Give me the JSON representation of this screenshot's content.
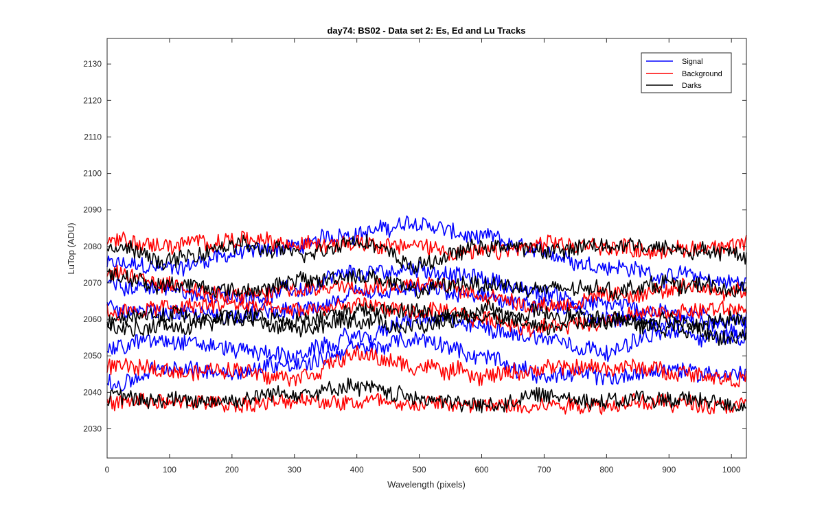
{
  "chart_data": {
    "type": "line",
    "title": "day74: BS02 - Data set 2: Es, Ed and Lu Tracks",
    "xlabel": "Wavelength (pixels)",
    "ylabel": "LuTop (ADU)",
    "xlim": [
      0,
      1024
    ],
    "ylim": [
      2022,
      2137
    ],
    "xticks": [
      0,
      100,
      200,
      300,
      400,
      500,
      600,
      700,
      800,
      900,
      1000
    ],
    "yticks": [
      2030,
      2040,
      2050,
      2060,
      2070,
      2080,
      2090,
      2100,
      2110,
      2120,
      2130
    ],
    "legend_position": "top-right",
    "colors": {
      "Signal": "#0000ff",
      "Background": "#ff0000",
      "Darks": "#000000"
    },
    "series": [
      {
        "name": "Signal",
        "group": "Signal",
        "x": [
          0,
          100,
          200,
          300,
          400,
          500,
          600,
          700,
          800,
          900,
          1024
        ],
        "values": [
          2075,
          2074,
          2078,
          2080,
          2084,
          2086,
          2082,
          2078,
          2075,
          2072,
          2070
        ]
      },
      {
        "name": "Signal",
        "group": "Signal",
        "x": [
          0,
          100,
          200,
          300,
          400,
          500,
          600,
          700,
          800,
          900,
          1024
        ],
        "values": [
          2070,
          2068,
          2066,
          2068,
          2072,
          2074,
          2071,
          2067,
          2064,
          2062,
          2060
        ]
      },
      {
        "name": "Signal",
        "group": "Signal",
        "x": [
          0,
          100,
          200,
          300,
          400,
          500,
          600,
          700,
          800,
          900,
          1024
        ],
        "values": [
          2063,
          2062,
          2061,
          2062,
          2066,
          2068,
          2066,
          2063,
          2061,
          2059,
          2058
        ]
      },
      {
        "name": "Signal",
        "group": "Signal",
        "x": [
          0,
          100,
          200,
          300,
          400,
          500,
          600,
          700,
          800,
          900,
          1024
        ],
        "values": [
          2052,
          2055,
          2052,
          2050,
          2055,
          2060,
          2058,
          2055,
          2052,
          2056,
          2055
        ]
      },
      {
        "name": "Signal",
        "group": "Signal",
        "x": [
          0,
          100,
          200,
          300,
          400,
          500,
          600,
          700,
          800,
          900,
          1024
        ],
        "values": [
          2042,
          2046,
          2046,
          2048,
          2052,
          2054,
          2050,
          2045,
          2044,
          2046,
          2045
        ]
      },
      {
        "name": "Background",
        "group": "Background",
        "x": [
          0,
          100,
          200,
          300,
          400,
          500,
          600,
          700,
          800,
          900,
          1024
        ],
        "values": [
          2082,
          2080,
          2082,
          2080,
          2082,
          2080,
          2078,
          2080,
          2080,
          2079,
          2081
        ]
      },
      {
        "name": "Background",
        "group": "Background",
        "x": [
          0,
          100,
          200,
          300,
          400,
          500,
          600,
          700,
          800,
          900,
          1024
        ],
        "values": [
          2072,
          2070,
          2066,
          2068,
          2070,
          2070,
          2067,
          2064,
          2066,
          2068,
          2068
        ]
      },
      {
        "name": "Background",
        "group": "Background",
        "x": [
          0,
          100,
          200,
          300,
          400,
          500,
          600,
          700,
          800,
          900,
          1024
        ],
        "values": [
          2062,
          2063,
          2064,
          2062,
          2064,
          2062,
          2060,
          2058,
          2060,
          2062,
          2063
        ]
      },
      {
        "name": "Background",
        "group": "Background",
        "x": [
          0,
          100,
          200,
          300,
          400,
          500,
          600,
          700,
          800,
          900,
          1024
        ],
        "values": [
          2047,
          2046,
          2046,
          2045,
          2050,
          2047,
          2045,
          2046,
          2047,
          2046,
          2044
        ]
      },
      {
        "name": "Background",
        "group": "Background",
        "x": [
          0,
          100,
          200,
          300,
          400,
          500,
          600,
          700,
          800,
          900,
          1024
        ],
        "values": [
          2037,
          2037,
          2037,
          2037,
          2038,
          2037,
          2036,
          2037,
          2037,
          2037,
          2037
        ]
      },
      {
        "name": "Darks",
        "group": "Darks",
        "x": [
          0,
          100,
          200,
          300,
          400,
          500,
          600,
          700,
          800,
          900,
          1024
        ],
        "values": [
          2080,
          2076,
          2080,
          2078,
          2082,
          2075,
          2080,
          2079,
          2080,
          2080,
          2078
        ]
      },
      {
        "name": "Darks",
        "group": "Darks",
        "x": [
          0,
          100,
          200,
          300,
          400,
          500,
          600,
          700,
          800,
          900,
          1024
        ],
        "values": [
          2072,
          2070,
          2068,
          2070,
          2072,
          2068,
          2070,
          2068,
          2068,
          2070,
          2068
        ]
      },
      {
        "name": "Darks",
        "group": "Darks",
        "x": [
          0,
          100,
          200,
          300,
          400,
          500,
          600,
          700,
          800,
          900,
          1024
        ],
        "values": [
          2060,
          2061,
          2061,
          2059,
          2062,
          2062,
          2060,
          2061,
          2060,
          2059,
          2060
        ]
      },
      {
        "name": "Darks",
        "group": "Darks",
        "x": [
          0,
          100,
          200,
          300,
          400,
          500,
          600,
          700,
          800,
          900,
          1024
        ],
        "values": [
          2057,
          2058,
          2060,
          2058,
          2060,
          2058,
          2062,
          2058,
          2060,
          2058,
          2056
        ]
      },
      {
        "name": "Darks",
        "group": "Darks",
        "x": [
          0,
          100,
          200,
          300,
          400,
          500,
          600,
          700,
          800,
          900,
          1024
        ],
        "values": [
          2038,
          2038,
          2038,
          2040,
          2041,
          2039,
          2036,
          2039,
          2038,
          2038,
          2037
        ]
      }
    ]
  },
  "legend": {
    "items": [
      {
        "label": "Signal",
        "color": "#0000ff"
      },
      {
        "label": "Background",
        "color": "#ff0000"
      },
      {
        "label": "Darks",
        "color": "#000000"
      }
    ]
  }
}
